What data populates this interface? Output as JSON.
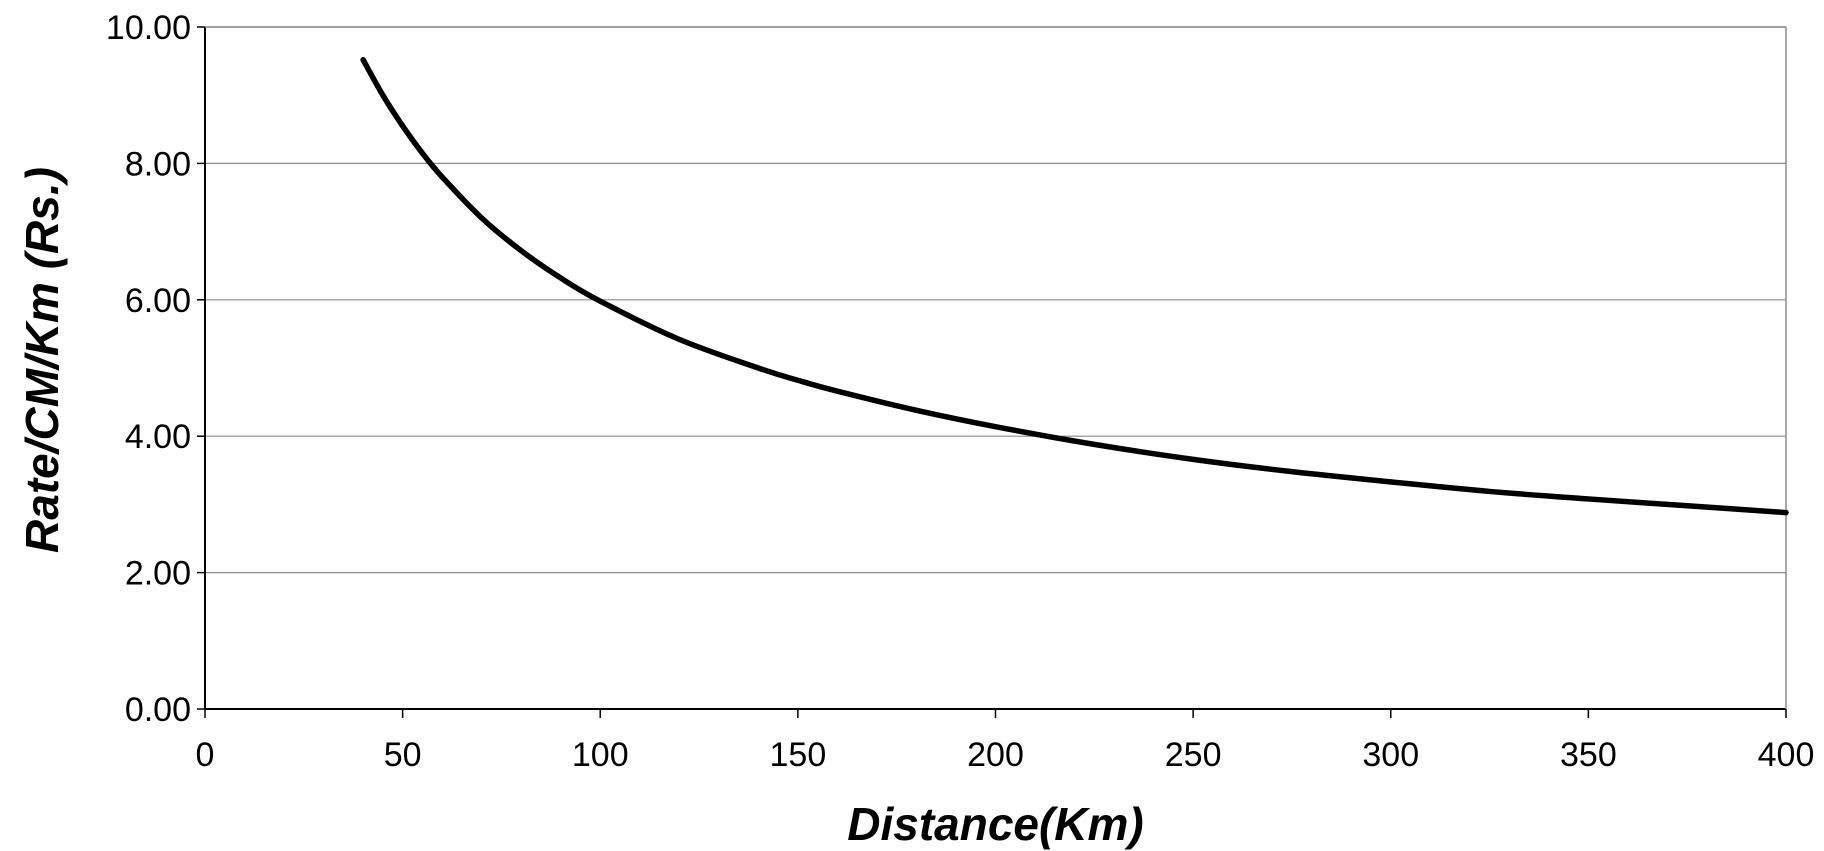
{
  "chart_data": {
    "type": "line",
    "title": "",
    "xlabel": "Distance(Km)",
    "ylabel": "Rate/CM/Km (Rs.)",
    "xlim": [
      0,
      400
    ],
    "ylim": [
      0,
      10
    ],
    "x_ticks": [
      "0",
      "50",
      "100",
      "150",
      "200",
      "250",
      "300",
      "350",
      "400"
    ],
    "y_ticks": [
      "0.00",
      "2.00",
      "4.00",
      "6.00",
      "8.00",
      "10.00"
    ],
    "grid": "horizontal",
    "legend": "none",
    "line_color": "#000000",
    "series": [
      {
        "x": [
          40,
          45,
          50,
          55,
          60,
          70,
          80,
          90,
          100,
          120,
          140,
          150,
          160,
          180,
          200,
          225,
          250,
          275,
          300,
          325,
          350,
          375,
          400
        ],
        "y": [
          9.52,
          9.0,
          8.55,
          8.15,
          7.8,
          7.2,
          6.72,
          6.32,
          5.98,
          5.42,
          5.0,
          4.82,
          4.66,
          4.38,
          4.14,
          3.88,
          3.66,
          3.48,
          3.33,
          3.19,
          3.08,
          2.98,
          2.88
        ]
      }
    ]
  }
}
